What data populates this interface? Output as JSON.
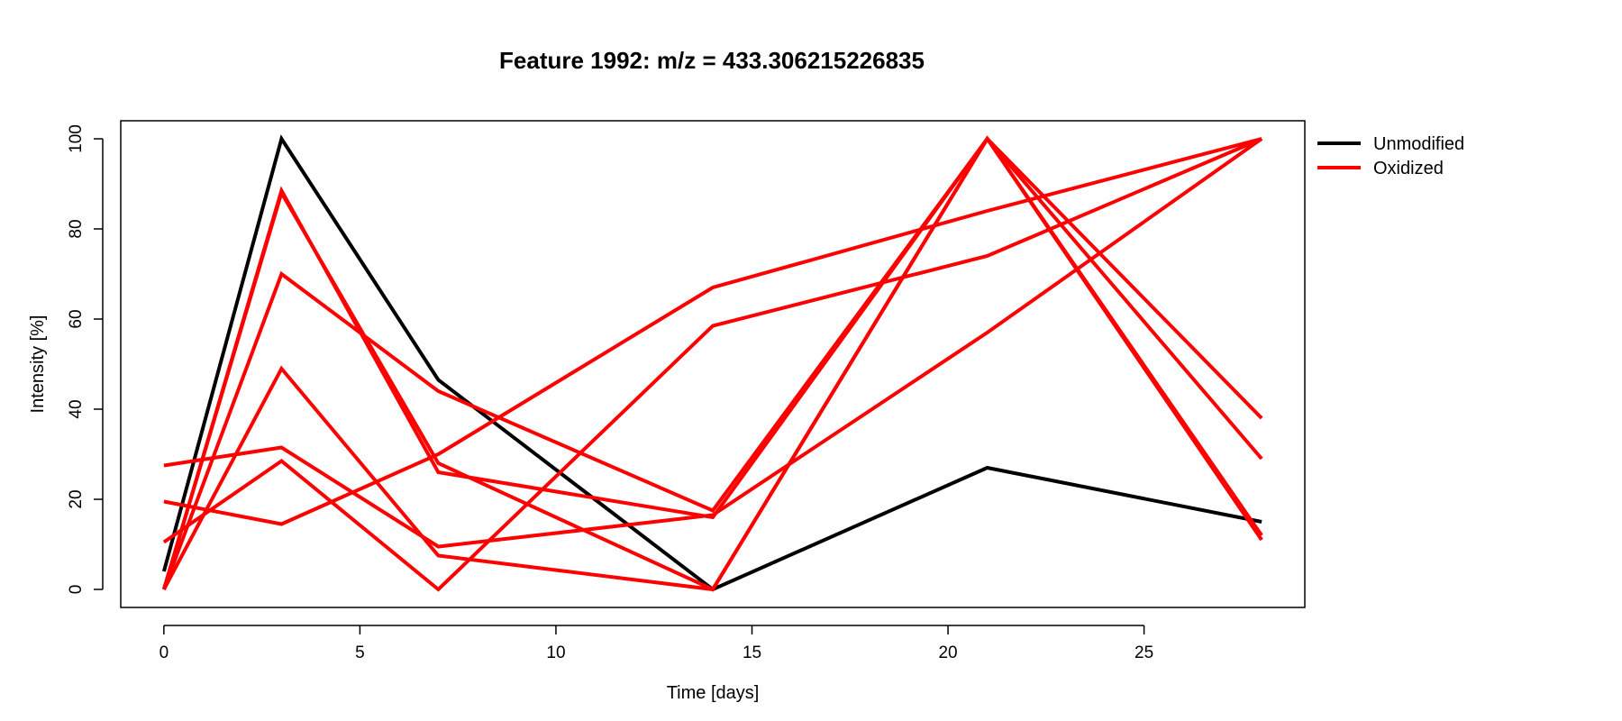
{
  "chart_data": {
    "type": "line",
    "title": "Feature 1992: m/z = 433.306215226835",
    "xlabel": "Time [days]",
    "ylabel": "Intensity [%]",
    "xlim": [
      -1.1,
      29.1
    ],
    "ylim": [
      -4,
      104
    ],
    "x": [
      0,
      3,
      7,
      14,
      21,
      28
    ],
    "xticks": [
      0,
      5,
      10,
      15,
      20,
      25
    ],
    "yticks": [
      0,
      20,
      40,
      60,
      80,
      100
    ],
    "grid": false,
    "legend": {
      "position": "top-right-outside",
      "entries": [
        {
          "label": "Unmodified",
          "color": "#000000"
        },
        {
          "label": "Oxidized",
          "color": "#ff0000"
        }
      ]
    },
    "series": [
      {
        "group": "Unmodified",
        "color": "#000000",
        "values": [
          4,
          100,
          46.5,
          0,
          27,
          15
        ]
      },
      {
        "group": "Oxidized",
        "color": "#ff0000",
        "values": [
          0,
          88.5,
          26,
          16,
          100,
          11
        ]
      },
      {
        "group": "Oxidized",
        "color": "#ff0000",
        "values": [
          0,
          88,
          28,
          0,
          100,
          12
        ]
      },
      {
        "group": "Oxidized",
        "color": "#ff0000",
        "values": [
          0,
          70,
          44,
          17.5,
          100,
          29
        ]
      },
      {
        "group": "Oxidized",
        "color": "#ff0000",
        "values": [
          0,
          49,
          7.5,
          0,
          100,
          38
        ]
      },
      {
        "group": "Oxidized",
        "color": "#ff0000",
        "values": [
          10.5,
          28.5,
          0,
          58.5,
          74,
          100
        ]
      },
      {
        "group": "Oxidized",
        "color": "#ff0000",
        "values": [
          19.5,
          14.5,
          30,
          67,
          84,
          100
        ]
      },
      {
        "group": "Oxidized",
        "color": "#ff0000",
        "values": [
          27.5,
          31.5,
          9.5,
          16.5,
          57,
          100
        ]
      }
    ]
  }
}
